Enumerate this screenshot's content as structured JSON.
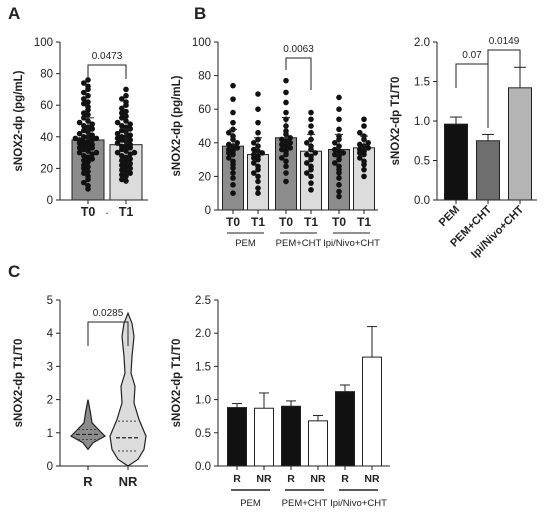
{
  "panels": [
    "A",
    "B",
    "C"
  ],
  "chart_data": [
    {
      "id": "A",
      "type": "bar",
      "ylabel": "sNOX2-dp (pg/mL)",
      "ylim": [
        0,
        100
      ],
      "yticks": [
        0,
        20,
        40,
        60,
        80,
        100
      ],
      "categories": [
        "T0",
        "T1"
      ],
      "values": [
        38,
        35
      ],
      "errors": [
        14,
        10
      ],
      "colors": [
        "#8c8c8c",
        "#dcdcdc"
      ],
      "points": [
        [
          76,
          74,
          72,
          70,
          68,
          66,
          64,
          62,
          61,
          59,
          57,
          55,
          54,
          52,
          50,
          49,
          48,
          47,
          46,
          45,
          44,
          43,
          42,
          41,
          40,
          40,
          39,
          39,
          38,
          38,
          37,
          37,
          36,
          35,
          35,
          34,
          33,
          33,
          32,
          31,
          30,
          30,
          29,
          28,
          27,
          26,
          25,
          24,
          22,
          21,
          20,
          18,
          17,
          15,
          13,
          11,
          9,
          7
        ],
        [
          70,
          66,
          64,
          62,
          60,
          58,
          56,
          55,
          53,
          52,
          50,
          49,
          48,
          47,
          46,
          45,
          44,
          43,
          42,
          41,
          40,
          40,
          39,
          38,
          38,
          37,
          36,
          35,
          34,
          34,
          33,
          32,
          31,
          30,
          30,
          29,
          28,
          27,
          26,
          25,
          24,
          23,
          22,
          21,
          20,
          19,
          18,
          17,
          16,
          15,
          13,
          12
        ]
      ],
      "comparisons": [
        {
          "from": 0,
          "to": 1,
          "label": "0.0473"
        }
      ],
      "extra_tick_label": "."
    },
    {
      "id": "B-left",
      "type": "bar",
      "ylabel": "sNOX2-dp (pg/mL)",
      "ylim": [
        0,
        100
      ],
      "yticks": [
        0,
        20,
        40,
        60,
        80,
        100
      ],
      "categories": [
        "T0",
        "T1",
        "T0",
        "T1",
        "T0",
        "T1"
      ],
      "values": [
        38,
        33,
        43,
        35,
        36,
        37
      ],
      "errors": [
        10,
        10,
        12,
        10,
        9,
        7
      ],
      "colors": [
        "#8c8c8c",
        "#dcdcdc",
        "#8c8c8c",
        "#dcdcdc",
        "#8c8c8c",
        "#dcdcdc"
      ],
      "groups": [
        "PEM",
        "PEM+CHT",
        "Ipi/Nivo+CHT"
      ],
      "points": [
        [
          74,
          66,
          58,
          52,
          48,
          46,
          44,
          42,
          40,
          39,
          38,
          37,
          36,
          35,
          34,
          33,
          31,
          29,
          27,
          25,
          22,
          19,
          15,
          10
        ],
        [
          69,
          60,
          52,
          46,
          42,
          40,
          38,
          36,
          35,
          34,
          33,
          32,
          31,
          30,
          28,
          26,
          24,
          22,
          20,
          17,
          13,
          10
        ],
        [
          77,
          70,
          64,
          58,
          54,
          50,
          47,
          45,
          43,
          42,
          41,
          40,
          39,
          38,
          37,
          36,
          35,
          33,
          31,
          29,
          26,
          22,
          17
        ],
        [
          58,
          54,
          50,
          46,
          42,
          40,
          38,
          36,
          34,
          33,
          32,
          30,
          28,
          26,
          24,
          22,
          20,
          16,
          12
        ],
        [
          67,
          60,
          54,
          48,
          44,
          42,
          40,
          38,
          36,
          35,
          34,
          33,
          32,
          30,
          28,
          26,
          24,
          22,
          19,
          15,
          11,
          8
        ],
        [
          54,
          50,
          46,
          44,
          42,
          40,
          39,
          38,
          37,
          36,
          35,
          34,
          33,
          31,
          29,
          27,
          24,
          20
        ]
      ],
      "comparisons": [
        {
          "from": 2,
          "to": 3,
          "label": "0.0063"
        }
      ]
    },
    {
      "id": "B-right",
      "type": "bar",
      "ylabel": "sNOX2-dp T1/T0",
      "ylim": [
        0,
        2.0
      ],
      "yticks": [
        0.0,
        0.5,
        1.0,
        1.5,
        2.0
      ],
      "categories": [
        "PEM",
        "PEM+CHT",
        "Ipi/Nivo+CHT"
      ],
      "values": [
        0.96,
        0.75,
        1.42
      ],
      "errors": [
        0.09,
        0.08,
        0.26
      ],
      "colors": [
        "#111111",
        "#6e6e6e",
        "#b4b4b4"
      ],
      "comparisons": [
        {
          "from": 0,
          "to": 1,
          "label": "0.07"
        },
        {
          "from": 1,
          "to": 2,
          "label": "0.0149"
        }
      ]
    },
    {
      "id": "C-left",
      "type": "violin",
      "ylabel": "sNOX2-dp T1/T0",
      "ylim": [
        0,
        5
      ],
      "yticks": [
        0,
        1,
        2,
        3,
        4,
        5
      ],
      "categories": [
        "R",
        "NR"
      ],
      "medians": [
        0.95,
        0.85
      ],
      "quartiles": [
        [
          0.8,
          1.1
        ],
        [
          0.45,
          1.35
        ]
      ],
      "ranges": [
        [
          0.5,
          2.0
        ],
        [
          0.0,
          4.6
        ]
      ],
      "colors": [
        "#8c8c8c",
        "#dcdcdc"
      ],
      "comparisons": [
        {
          "from": 0,
          "to": 1,
          "label": "0.0285"
        }
      ]
    },
    {
      "id": "C-right",
      "type": "bar",
      "ylabel": "sNOX2-dp T1/T0",
      "ylim": [
        0,
        2.5
      ],
      "yticks": [
        0.0,
        0.5,
        1.0,
        1.5,
        2.0,
        2.5
      ],
      "categories": [
        "R",
        "NR",
        "R",
        "NR",
        "R",
        "NR"
      ],
      "values": [
        0.88,
        0.87,
        0.9,
        0.68,
        1.12,
        1.64
      ],
      "errors": [
        0.06,
        0.23,
        0.08,
        0.08,
        0.1,
        0.46
      ],
      "colors": [
        "#111111",
        "#ffffff",
        "#111111",
        "#ffffff",
        "#111111",
        "#ffffff"
      ],
      "groups": [
        "PEM",
        "PEM+CHT",
        "Ipi/Nivo+CHT"
      ]
    }
  ]
}
